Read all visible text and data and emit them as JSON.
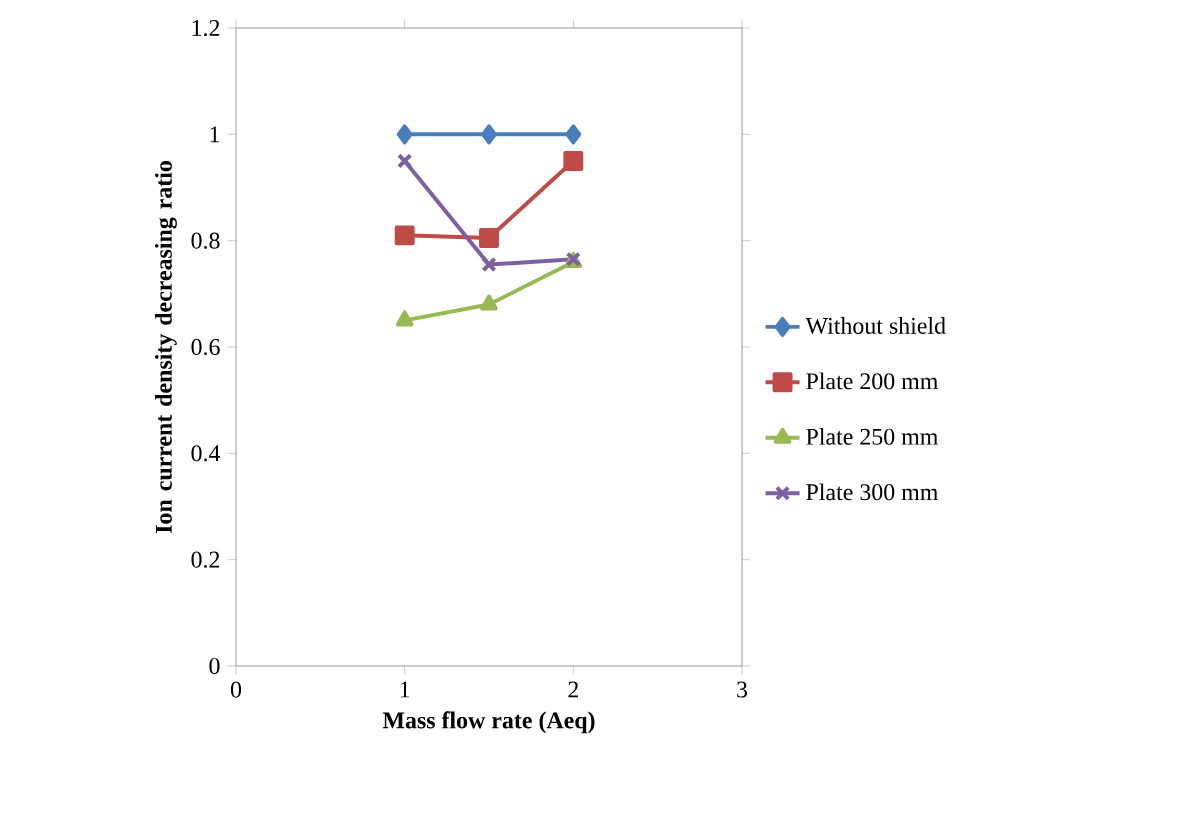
{
  "chart_data": {
    "type": "line",
    "xlabel": "Mass flow rate (Aeq)",
    "ylabel": "Ion current density decreasing ratio",
    "x": [
      1,
      1.5,
      2
    ],
    "series": [
      {
        "name": "Without shield",
        "color": "#4a7ebb",
        "marker": "diamond",
        "values": [
          1,
          1,
          1
        ]
      },
      {
        "name": "Plate 200 mm",
        "color": "#be4b48",
        "marker": "square",
        "values": [
          0.81,
          0.805,
          0.95
        ]
      },
      {
        "name": "Plate 250 mm",
        "color": "#98b954",
        "marker": "triangle",
        "values": [
          0.65,
          0.68,
          0.76
        ]
      },
      {
        "name": "Plate 300 mm",
        "color": "#7d60a0",
        "marker": "cross",
        "values": [
          0.95,
          0.755,
          0.765
        ]
      }
    ],
    "xlim": [
      0,
      3
    ],
    "xticks": [
      0,
      1,
      2,
      3
    ],
    "ylim": [
      0,
      1.2
    ],
    "yticks": [
      0,
      0.2,
      0.4,
      0.6,
      0.8,
      1,
      1.2
    ],
    "grid": false,
    "legend": "right",
    "line_style": "solid"
  }
}
